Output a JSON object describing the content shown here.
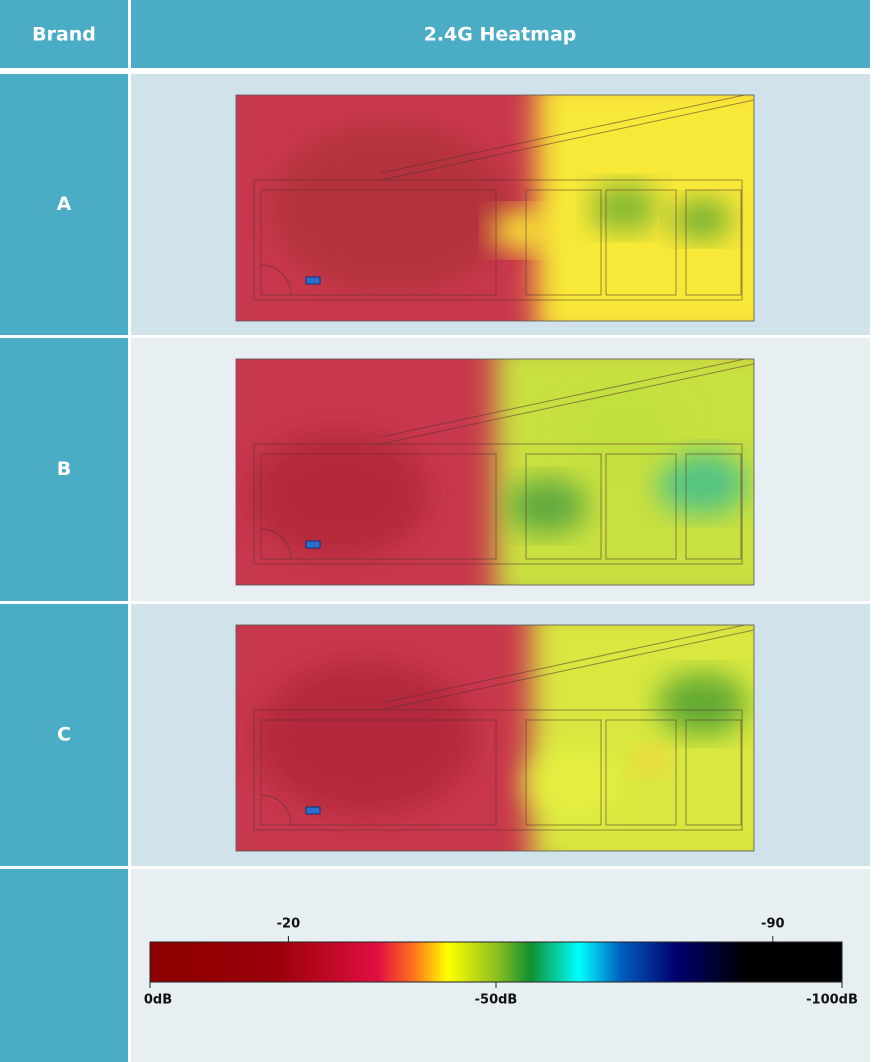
{
  "header": {
    "brand": "Brand",
    "heatmap": "2.4G Heatmap"
  },
  "rows": [
    {
      "brand": "A"
    },
    {
      "brand": "B"
    },
    {
      "brand": "C"
    }
  ],
  "legend": {
    "range": [
      0,
      -100
    ],
    "ticks_top": [
      -20,
      -90
    ],
    "ticks_bottom": [
      {
        "value": 0,
        "label": "0dB"
      },
      {
        "value": -50,
        "label": "-50dB"
      },
      {
        "value": -100,
        "label": "-100dB"
      }
    ]
  }
}
